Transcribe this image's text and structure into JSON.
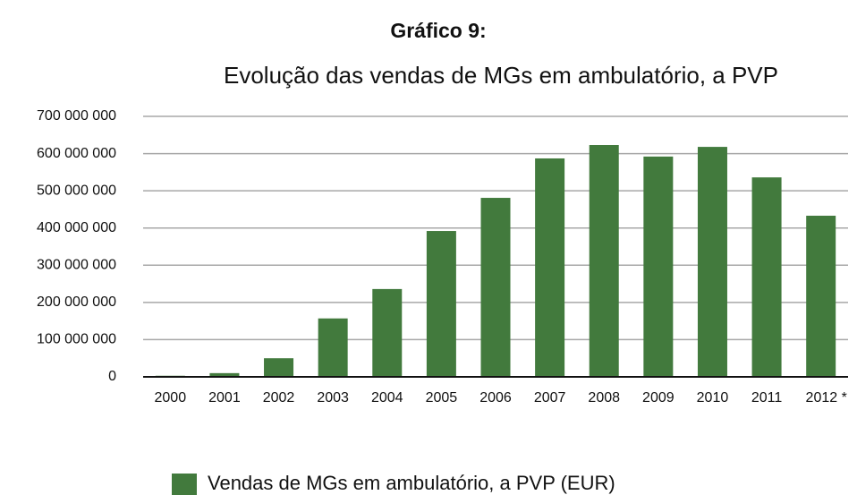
{
  "chart_data": {
    "type": "bar",
    "title": "Gráfico 9:",
    "subtitle": "Evolução das vendas de MGs em ambulatório, a PVP",
    "categories": [
      "2000",
      "2001",
      "2002",
      "2003",
      "2004",
      "2005",
      "2006",
      "2007",
      "2008",
      "2009",
      "2010",
      "2011",
      "2012 *"
    ],
    "series": [
      {
        "name": "Vendas de MGs em ambulatório, a PVP (EUR)",
        "color": "#427a3d",
        "values": [
          3000000,
          10000000,
          50000000,
          157000000,
          236000000,
          392000000,
          481000000,
          587000000,
          623000000,
          592000000,
          618000000,
          536000000,
          433000000
        ]
      }
    ],
    "ylim": [
      0,
      700000000
    ],
    "yticks": [
      0,
      {
        "value": 100000000,
        "label": "100 000 000"
      },
      {
        "value": 200000000,
        "label": "200 000 000"
      },
      {
        "value": 300000000,
        "label": "300 000 000"
      },
      {
        "value": 400000000,
        "label": "400 000 000"
      },
      {
        "value": 500000000,
        "label": "500 000 000"
      },
      {
        "value": 600000000,
        "label": "600 000 000"
      },
      {
        "value": 700000000,
        "label": "700 000 000"
      }
    ],
    "grid": true,
    "legend": "bottom"
  }
}
